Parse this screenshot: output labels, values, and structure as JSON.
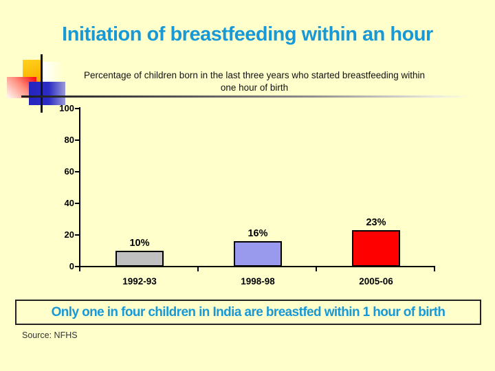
{
  "slide": {
    "background_color": "#FFFFCC",
    "title": "Initiation of breastfeeding within an hour",
    "title_color": "#1899D6",
    "conclusion": "Only one in four children in India are breastfed within 1 hour of birth",
    "source": "Source: NFHS"
  },
  "chart_data": {
    "type": "bar",
    "title": "Percentage of children born in the last three years who started breastfeeding within one hour of birth",
    "categories": [
      "1992-93",
      "1998-98",
      "2005-06"
    ],
    "values": [
      10,
      16,
      23
    ],
    "value_labels": [
      "10%",
      "16%",
      "23%"
    ],
    "bar_colors": [
      "#C0C0C0",
      "#9999EE",
      "#FF0000"
    ],
    "bar_border_color": "#000000",
    "ylim": [
      0,
      100
    ],
    "ytick_labels_top_to_bottom": [
      "100",
      "80",
      "60",
      "40",
      "20",
      "0"
    ],
    "xlabel": "",
    "ylabel": "",
    "grid": false,
    "legend_position": "none"
  }
}
